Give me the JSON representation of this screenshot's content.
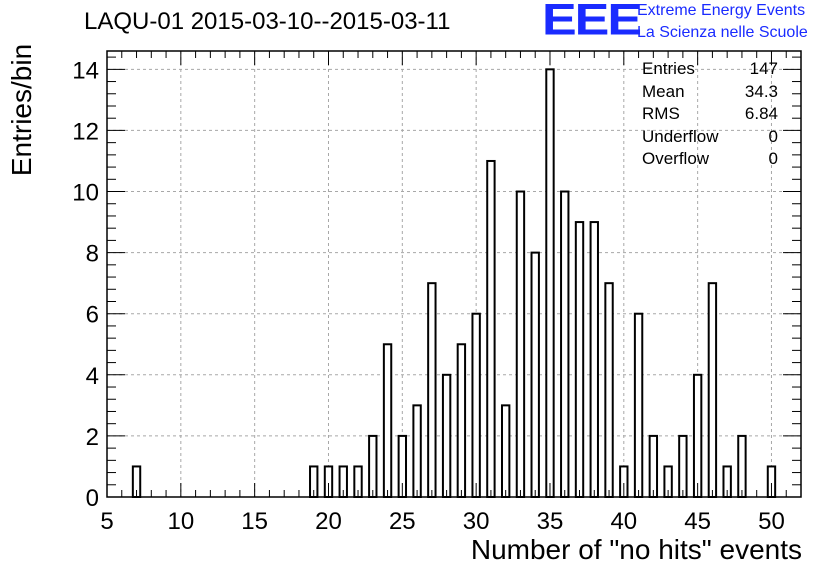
{
  "chart_data": {
    "type": "bar",
    "title": "LAQU-01 2015-03-10--2015-03-11",
    "xlabel": "Number of \"no hits\" events",
    "ylabel": "Entries/bin",
    "xlim": [
      5,
      52
    ],
    "ylim": [
      0,
      14.6
    ],
    "grid": true,
    "x_ticks": [
      5,
      10,
      15,
      20,
      25,
      30,
      35,
      40,
      45,
      50
    ],
    "y_ticks": [
      0,
      2,
      4,
      6,
      8,
      10,
      12,
      14
    ],
    "bins": [
      {
        "x": 7,
        "value": 1
      },
      {
        "x": 19,
        "value": 1
      },
      {
        "x": 20,
        "value": 1
      },
      {
        "x": 21,
        "value": 1
      },
      {
        "x": 22,
        "value": 1
      },
      {
        "x": 23,
        "value": 2
      },
      {
        "x": 24,
        "value": 5
      },
      {
        "x": 25,
        "value": 2
      },
      {
        "x": 26,
        "value": 3
      },
      {
        "x": 27,
        "value": 7
      },
      {
        "x": 28,
        "value": 4
      },
      {
        "x": 29,
        "value": 5
      },
      {
        "x": 30,
        "value": 6
      },
      {
        "x": 31,
        "value": 11
      },
      {
        "x": 32,
        "value": 3
      },
      {
        "x": 33,
        "value": 10
      },
      {
        "x": 34,
        "value": 8
      },
      {
        "x": 35,
        "value": 14
      },
      {
        "x": 36,
        "value": 10
      },
      {
        "x": 37,
        "value": 9
      },
      {
        "x": 38,
        "value": 9
      },
      {
        "x": 39,
        "value": 7
      },
      {
        "x": 40,
        "value": 1
      },
      {
        "x": 41,
        "value": 6
      },
      {
        "x": 42,
        "value": 2
      },
      {
        "x": 43,
        "value": 1
      },
      {
        "x": 44,
        "value": 2
      },
      {
        "x": 45,
        "value": 4
      },
      {
        "x": 46,
        "value": 7
      },
      {
        "x": 47,
        "value": 1
      },
      {
        "x": 48,
        "value": 2
      },
      {
        "x": 50,
        "value": 1
      }
    ],
    "stats": [
      {
        "label": "Entries",
        "value": "147"
      },
      {
        "label": "Mean",
        "value": "34.3"
      },
      {
        "label": "RMS",
        "value": "6.84"
      },
      {
        "label": "Underflow",
        "value": "0"
      },
      {
        "label": "Overflow",
        "value": "0"
      }
    ]
  },
  "logo": {
    "mark": "EEE",
    "line1": "Extreme Energy Events",
    "line2": "La Scienza nelle Scuole",
    "color": "#1a2bff"
  }
}
